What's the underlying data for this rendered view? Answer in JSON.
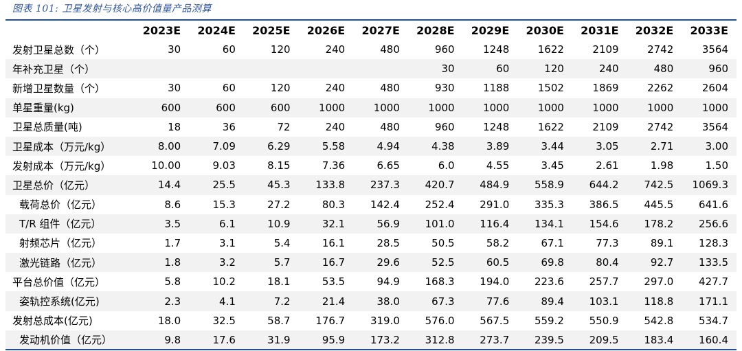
{
  "title": "图表 101:  卫星发射与核心高价值量产品测算",
  "columns": [
    "2023E",
    "2024E",
    "2025E",
    "2026E",
    "2027E",
    "2028E",
    "2029E",
    "2030E",
    "2031E",
    "2032E",
    "2033E"
  ],
  "rows": [
    {
      "label": "发射卫星总数（个）",
      "indent": false,
      "values": [
        "30",
        "60",
        "120",
        "240",
        "480",
        "960",
        "1248",
        "1622",
        "2109",
        "2742",
        "3564"
      ]
    },
    {
      "label": "年补充卫星（个）",
      "indent": false,
      "values": [
        "",
        "",
        "",
        "",
        "",
        "30",
        "60",
        "120",
        "240",
        "480",
        "960"
      ]
    },
    {
      "label": "新增卫星数量（个）",
      "indent": false,
      "values": [
        "30",
        "60",
        "120",
        "240",
        "480",
        "930",
        "1188",
        "1502",
        "1869",
        "2262",
        "2604"
      ]
    },
    {
      "label": "单星重量(kg)",
      "indent": false,
      "values": [
        "600",
        "600",
        "600",
        "1000",
        "1000",
        "1000",
        "1000",
        "1000",
        "1000",
        "1000",
        "1000"
      ]
    },
    {
      "label": "卫星总质量(吨)",
      "indent": false,
      "values": [
        "18",
        "36",
        "72",
        "240",
        "480",
        "960",
        "1248",
        "1622",
        "2109",
        "2742",
        "3564"
      ]
    },
    {
      "label": "卫星成本（万元/kg）",
      "indent": false,
      "values": [
        "8.00",
        "7.09",
        "6.29",
        "5.58",
        "4.94",
        "4.38",
        "3.89",
        "3.44",
        "3.05",
        "2.71",
        "3.00"
      ]
    },
    {
      "label": "发射成本（万元/kg）",
      "indent": false,
      "values": [
        "10.00",
        "9.03",
        "8.15",
        "7.36",
        "6.65",
        "6.0",
        "4.55",
        "3.45",
        "2.61",
        "1.98",
        "1.50"
      ]
    },
    {
      "label": "卫星总价（亿元）",
      "indent": false,
      "values": [
        "14.4",
        "25.5",
        "45.3",
        "133.8",
        "237.3",
        "420.7",
        "484.9",
        "558.9",
        "644.2",
        "742.5",
        "1069.3"
      ]
    },
    {
      "label": "载荷总价（亿元）",
      "indent": true,
      "values": [
        "8.6",
        "15.3",
        "27.2",
        "80.3",
        "142.4",
        "252.4",
        "291.0",
        "335.3",
        "386.5",
        "445.5",
        "641.6"
      ]
    },
    {
      "label": "T/R 组件（亿元）",
      "indent": true,
      "values": [
        "3.5",
        "6.1",
        "10.9",
        "32.1",
        "56.9",
        "101.0",
        "116.4",
        "134.1",
        "154.6",
        "178.2",
        "256.6"
      ]
    },
    {
      "label": "射频芯片（亿元）",
      "indent": true,
      "values": [
        "1.7",
        "3.1",
        "5.4",
        "16.1",
        "28.5",
        "50.5",
        "58.2",
        "67.1",
        "77.3",
        "89.1",
        "128.3"
      ]
    },
    {
      "label": "激光链路（亿元）",
      "indent": true,
      "values": [
        "1.8",
        "3.2",
        "5.7",
        "16.7",
        "29.6",
        "52.5",
        "60.5",
        "69.8",
        "80.4",
        "92.7",
        "133.5"
      ]
    },
    {
      "label": "平台总价值（亿元）",
      "indent": false,
      "values": [
        "5.8",
        "10.2",
        "18.1",
        "53.5",
        "94.9",
        "168.3",
        "194.0",
        "223.6",
        "257.7",
        "297.0",
        "427.7"
      ]
    },
    {
      "label": "姿轨控系统(亿元)",
      "indent": true,
      "values": [
        "2.3",
        "4.1",
        "7.2",
        "21.4",
        "38.0",
        "67.3",
        "77.6",
        "89.4",
        "103.1",
        "118.8",
        "171.1"
      ]
    },
    {
      "label": "发射总成本(亿元)",
      "indent": false,
      "values": [
        "18.0",
        "32.5",
        "58.7",
        "176.7",
        "319.0",
        "576.0",
        "567.5",
        "559.2",
        "550.9",
        "542.8",
        "534.7"
      ]
    },
    {
      "label": "发动机价值（亿元）",
      "indent": true,
      "values": [
        "9.8",
        "17.6",
        "31.9",
        "95.9",
        "173.2",
        "312.8",
        "273.7",
        "239.5",
        "209.5",
        "183.4",
        "160.4"
      ]
    }
  ],
  "colors": {
    "accent": "#1f4e9a",
    "title": "#2f55a0",
    "stripe": "#f2f2f2"
  }
}
